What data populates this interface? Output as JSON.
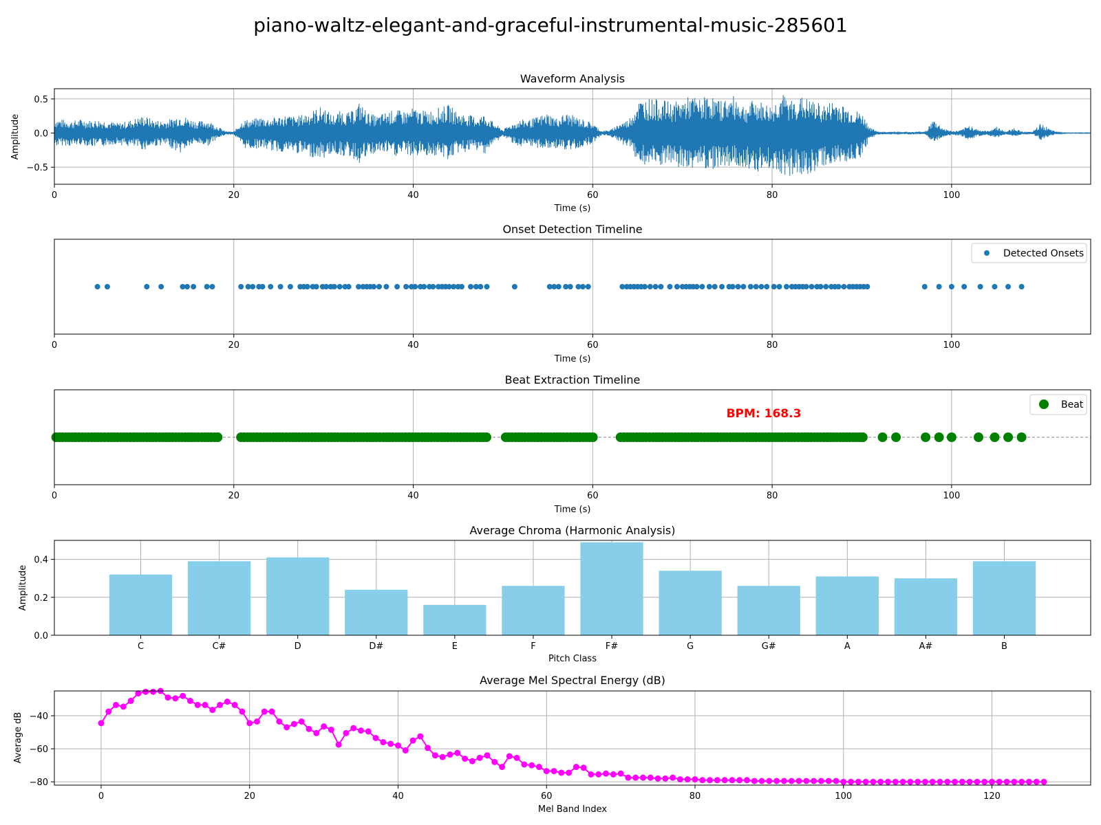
{
  "title": "piano-waltz-elegant-and-graceful-instrumental-music-285601",
  "colors": {
    "wave": "#1f77b4",
    "onset": "#1f77b4",
    "beat": "#008000",
    "bpm": "#ff0000",
    "bar": "#87ceeb",
    "mel": "#ff00ff",
    "grid": "#b0b0b0"
  },
  "chart_data": [
    {
      "id": "waveform",
      "type": "area",
      "title": "Waveform Analysis",
      "xlabel": "Time (s)",
      "ylabel": "Amplitude",
      "xlim": [
        0,
        115.5
      ],
      "ylim": [
        -0.75,
        0.65
      ],
      "xticks": [
        0,
        20,
        40,
        60,
        80,
        100
      ],
      "yticks": [
        -0.5,
        0.0,
        0.5
      ],
      "ytick_labels": [
        "−0.5",
        "0.0",
        "0.5"
      ],
      "grid": true,
      "envelope": {
        "t": [
          0,
          1,
          2,
          3,
          4,
          5,
          6,
          7,
          8,
          9,
          10,
          11,
          12,
          13,
          14,
          15,
          16,
          17,
          18,
          19,
          20,
          21,
          22,
          23,
          24,
          25,
          26,
          27,
          28,
          29,
          30,
          31,
          32,
          33,
          34,
          35,
          36,
          37,
          38,
          39,
          40,
          41,
          42,
          43,
          44,
          45,
          46,
          47,
          48,
          49,
          50,
          51,
          52,
          53,
          54,
          55,
          56,
          57,
          58,
          59,
          60,
          61,
          62,
          63,
          64,
          65,
          66,
          67,
          68,
          69,
          70,
          71,
          72,
          73,
          74,
          75,
          76,
          77,
          78,
          79,
          80,
          81,
          82,
          83,
          84,
          85,
          86,
          87,
          88,
          89,
          90,
          91,
          92,
          93,
          94,
          95,
          96,
          97,
          98,
          99,
          100,
          101,
          102,
          103,
          104,
          105,
          106,
          107,
          108,
          109,
          110,
          111,
          112,
          113,
          114,
          115
        ],
        "upper": [
          0.22,
          0.2,
          0.18,
          0.21,
          0.19,
          0.2,
          0.18,
          0.15,
          0.17,
          0.22,
          0.26,
          0.2,
          0.18,
          0.21,
          0.28,
          0.22,
          0.17,
          0.2,
          0.12,
          0.03,
          0.02,
          0.2,
          0.2,
          0.24,
          0.22,
          0.25,
          0.27,
          0.24,
          0.3,
          0.35,
          0.4,
          0.26,
          0.34,
          0.3,
          0.46,
          0.3,
          0.25,
          0.32,
          0.34,
          0.33,
          0.37,
          0.33,
          0.34,
          0.38,
          0.42,
          0.3,
          0.28,
          0.24,
          0.28,
          0.15,
          0.05,
          0.14,
          0.2,
          0.2,
          0.25,
          0.3,
          0.22,
          0.3,
          0.25,
          0.2,
          0.15,
          0.03,
          0.05,
          0.15,
          0.2,
          0.48,
          0.52,
          0.5,
          0.48,
          0.45,
          0.5,
          0.55,
          0.5,
          0.58,
          0.48,
          0.52,
          0.55,
          0.4,
          0.5,
          0.45,
          0.4,
          0.6,
          0.48,
          0.55,
          0.5,
          0.45,
          0.42,
          0.5,
          0.4,
          0.35,
          0.3,
          0.07,
          0.02,
          0.02,
          0.01,
          0.02,
          0.02,
          0.02,
          0.2,
          0.08,
          0.03,
          0.04,
          0.12,
          0.05,
          0.03,
          0.1,
          0.02,
          0.08,
          0.01,
          0.02,
          0.15,
          0.05,
          0.01,
          0.005,
          0.005,
          0.005
        ],
        "lower": [
          -0.2,
          -0.18,
          -0.2,
          -0.17,
          -0.2,
          -0.22,
          -0.18,
          -0.16,
          -0.2,
          -0.22,
          -0.25,
          -0.2,
          -0.18,
          -0.22,
          -0.3,
          -0.2,
          -0.16,
          -0.2,
          -0.1,
          -0.03,
          -0.02,
          -0.22,
          -0.24,
          -0.22,
          -0.26,
          -0.28,
          -0.28,
          -0.3,
          -0.34,
          -0.36,
          -0.38,
          -0.3,
          -0.34,
          -0.36,
          -0.45,
          -0.35,
          -0.3,
          -0.3,
          -0.35,
          -0.3,
          -0.36,
          -0.32,
          -0.34,
          -0.36,
          -0.4,
          -0.3,
          -0.28,
          -0.26,
          -0.3,
          -0.16,
          -0.05,
          -0.14,
          -0.22,
          -0.22,
          -0.22,
          -0.25,
          -0.22,
          -0.28,
          -0.24,
          -0.2,
          -0.15,
          -0.03,
          -0.05,
          -0.15,
          -0.2,
          -0.42,
          -0.5,
          -0.52,
          -0.48,
          -0.5,
          -0.55,
          -0.52,
          -0.48,
          -0.55,
          -0.5,
          -0.48,
          -0.52,
          -0.5,
          -0.55,
          -0.58,
          -0.52,
          -0.6,
          -0.65,
          -0.58,
          -0.7,
          -0.52,
          -0.48,
          -0.46,
          -0.45,
          -0.4,
          -0.35,
          -0.07,
          -0.02,
          -0.02,
          -0.01,
          -0.02,
          -0.02,
          -0.02,
          -0.15,
          -0.06,
          -0.03,
          -0.04,
          -0.1,
          -0.05,
          -0.03,
          -0.08,
          -0.02,
          -0.06,
          -0.01,
          -0.02,
          -0.12,
          -0.04,
          -0.01,
          -0.005,
          -0.005,
          -0.005
        ]
      }
    },
    {
      "id": "onsets",
      "type": "scatter",
      "title": "Onset Detection Timeline",
      "xlabel": "Time (s)",
      "xlim": [
        0,
        115.5
      ],
      "xticks": [
        0,
        20,
        40,
        60,
        80,
        100
      ],
      "grid": true,
      "legend": "top-right",
      "series": [
        {
          "name": "Detected Onsets",
          "x": [
            4.8,
            5.9,
            10.3,
            11.9,
            14.3,
            14.8,
            15.5,
            17.0,
            17.6,
            20.8,
            21.6,
            22.1,
            22.8,
            23.2,
            24.1,
            25.2,
            26.3,
            27.4,
            27.8,
            28.2,
            28.8,
            29.2,
            29.9,
            30.3,
            30.8,
            31.2,
            31.8,
            32.4,
            32.8,
            33.9,
            34.4,
            34.8,
            35.2,
            35.6,
            36.2,
            37.0,
            38.2,
            39.2,
            39.8,
            40.2,
            40.8,
            41.2,
            41.8,
            42.2,
            42.8,
            43.2,
            43.6,
            44.0,
            44.5,
            45.0,
            45.4,
            46.4,
            47.0,
            47.5,
            48.2,
            51.3,
            55.2,
            55.7,
            56.2,
            57.0,
            57.5,
            58.4,
            58.9,
            59.5,
            63.3,
            63.8,
            64.2,
            64.6,
            65.0,
            65.4,
            65.8,
            66.4,
            67.0,
            67.6,
            68.6,
            69.4,
            70.0,
            70.4,
            70.8,
            71.2,
            71.6,
            72.2,
            73.0,
            73.6,
            74.4,
            75.2,
            75.6,
            76.2,
            76.8,
            77.6,
            78.2,
            78.8,
            79.4,
            80.2,
            80.8,
            81.6,
            82.2,
            82.6,
            83.0,
            83.4,
            83.8,
            84.4,
            85.0,
            85.4,
            86.0,
            86.6,
            87.0,
            87.4,
            88.0,
            88.6,
            89.0,
            89.4,
            89.8,
            90.2,
            90.6,
            97.0,
            98.6,
            100.0,
            101.4,
            103.2,
            104.8,
            106.3,
            107.8
          ]
        }
      ]
    },
    {
      "id": "beats",
      "type": "scatter",
      "title": "Beat Extraction Timeline",
      "xlabel": "Time (s)",
      "xlim": [
        0,
        115.5
      ],
      "xticks": [
        0,
        20,
        40,
        60,
        80,
        100
      ],
      "grid": true,
      "legend": "top-right",
      "annotation": "BPM: 168.3",
      "series": [
        {
          "name": "Beat",
          "segments": [
            {
              "start": 0.2,
              "end": 18.2,
              "step": 0.36
            },
            {
              "start": 20.8,
              "end": 48.2,
              "step": 0.36
            },
            {
              "start": 50.3,
              "end": 60.3,
              "step": 0.36
            },
            {
              "start": 63.1,
              "end": 90.1,
              "step": 0.36
            }
          ],
          "x": [
            92.3,
            93.8,
            97.1,
            98.6,
            100.0,
            103.0,
            104.8,
            106.3,
            107.8
          ]
        }
      ]
    },
    {
      "id": "chroma",
      "type": "bar",
      "title": "Average Chroma (Harmonic Analysis)",
      "xlabel": "Pitch Class",
      "ylabel": "Amplitude",
      "ylim": [
        0,
        0.5
      ],
      "yticks": [
        0.0,
        0.2,
        0.4
      ],
      "ytick_labels": [
        "0.0",
        "0.2",
        "0.4"
      ],
      "grid": true,
      "categories": [
        "C",
        "C#",
        "D",
        "D#",
        "E",
        "F",
        "F#",
        "G",
        "G#",
        "A",
        "A#",
        "B"
      ],
      "values": [
        0.32,
        0.39,
        0.41,
        0.24,
        0.16,
        0.26,
        0.49,
        0.34,
        0.26,
        0.31,
        0.3,
        0.39
      ]
    },
    {
      "id": "mel",
      "type": "line",
      "title": "Average Mel Spectral Energy (dB)",
      "xlabel": "Mel Band Index",
      "ylabel": "Average dB",
      "xlim": [
        -6.3,
        133.3
      ],
      "ylim": [
        -82,
        -25
      ],
      "xticks": [
        0,
        20,
        40,
        60,
        80,
        100,
        120
      ],
      "yticks": [
        -80,
        -60,
        -40
      ],
      "ytick_labels": [
        "−80",
        "−60",
        "−40"
      ],
      "grid": true,
      "series": [
        {
          "name": "Average dB",
          "values": [
            -44.5,
            -37.5,
            -33.5,
            -34.5,
            -31,
            -26.5,
            -25.5,
            -25.5,
            -25,
            -29,
            -29.5,
            -28,
            -31,
            -33.5,
            -33.5,
            -36.5,
            -33.5,
            -31.5,
            -33.5,
            -37.5,
            -44.5,
            -43.5,
            -37.5,
            -37.5,
            -43.5,
            -47,
            -45,
            -43.5,
            -48,
            -50.5,
            -46.5,
            -48.5,
            -57.5,
            -50.5,
            -47.5,
            -49,
            -49.5,
            -53.5,
            -56,
            -57,
            -58,
            -61,
            -55,
            -52.5,
            -59.5,
            -64,
            -65,
            -63.5,
            -62.5,
            -66,
            -67.5,
            -65.5,
            -64,
            -68,
            -71,
            -64.5,
            -65.5,
            -69.5,
            -70,
            -71,
            -73.5,
            -73.5,
            -74.5,
            -74.5,
            -71,
            -71.5,
            -75.5,
            -75.5,
            -75,
            -75.5,
            -75,
            -77.5,
            -77.5,
            -77.5,
            -77.5,
            -78,
            -78,
            -77.5,
            -78.5,
            -78.5,
            -78.5,
            -79,
            -79,
            -79,
            -79,
            -79,
            -79,
            -79,
            -79.5,
            -79.5,
            -79.5,
            -79.5,
            -79.5,
            -79.5,
            -79.5,
            -79.5,
            -79.5,
            -79.5,
            -79.5,
            -79.5,
            -80,
            -80,
            -80,
            -80,
            -80,
            -80,
            -80,
            -80,
            -80,
            -80,
            -80,
            -80,
            -80,
            -80,
            -80,
            -80,
            -80,
            -80,
            -80,
            -80,
            -80,
            -80,
            -80,
            -80,
            -80,
            -80,
            -80,
            -80
          ]
        }
      ]
    }
  ]
}
